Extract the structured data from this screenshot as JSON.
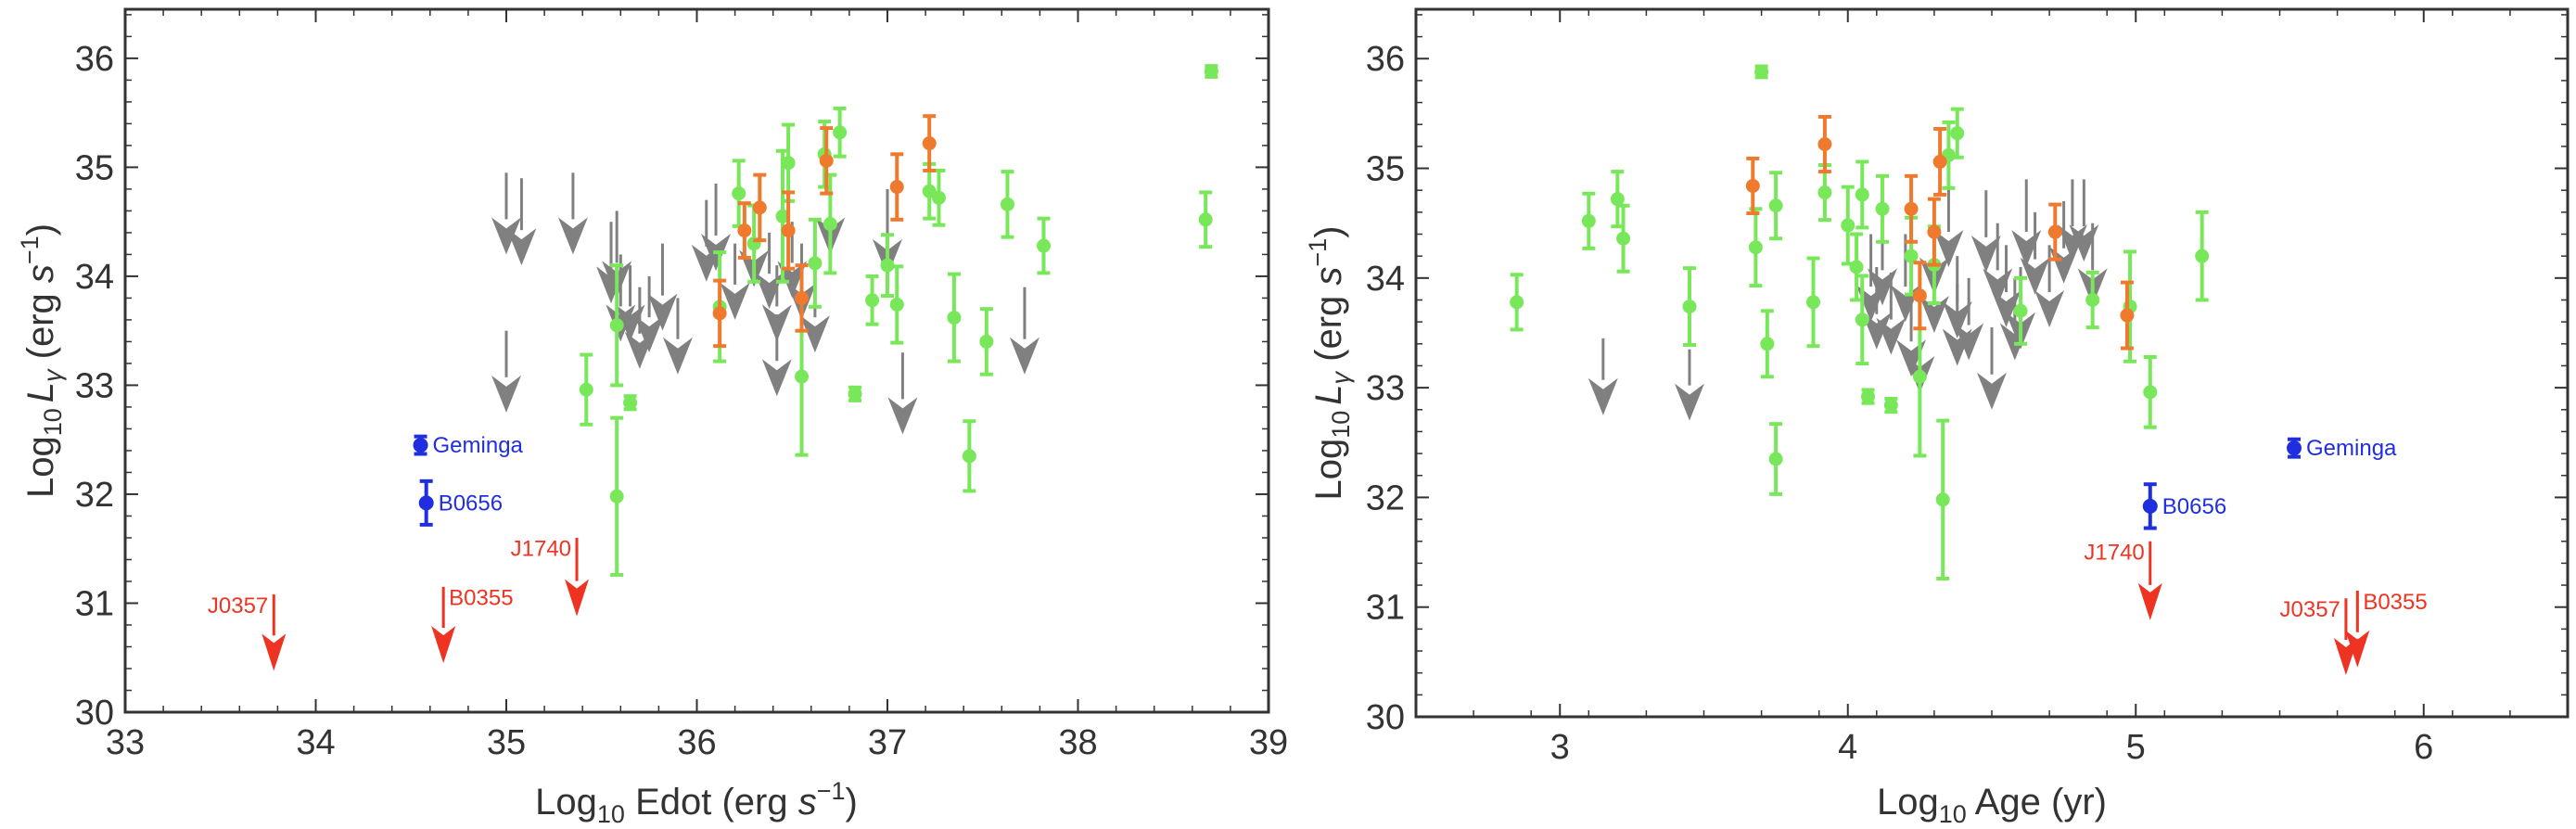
{
  "colors": {
    "green": "#78e85a",
    "orange": "#ef7a2e",
    "gray": "#808080",
    "blue": "#1f2fe0",
    "red": "#ee3322",
    "frame": "#333333"
  },
  "chart_data": [
    {
      "type": "scatter",
      "title": "",
      "xlabel": {
        "pre": "Log",
        "sub": "10",
        "post": " Edot (erg ",
        "italic": "s",
        "sup": "−1",
        "close": ")"
      },
      "ylabel": {
        "pre": "Log",
        "sub": "10",
        "italic": "L",
        "isub": "γ",
        "mid": " (erg ",
        "italic2": "s",
        "sup": "−1",
        "close": ")"
      },
      "xlim": [
        33,
        39
      ],
      "ylim": [
        30,
        36.45
      ],
      "xticks": [
        "33",
        "34",
        "35",
        "36",
        "37",
        "38",
        "39"
      ],
      "yticks": [
        "30",
        "31",
        "32",
        "33",
        "34",
        "35",
        "36"
      ],
      "green": [
        [
          35.42,
          32.96,
          0.32
        ],
        [
          35.58,
          33.55,
          0.55
        ],
        [
          35.58,
          31.98,
          0.72
        ],
        [
          35.65,
          32.84,
          0.06
        ],
        [
          36.12,
          33.72,
          0.5
        ],
        [
          36.22,
          34.76,
          0.3
        ],
        [
          36.3,
          34.3,
          0.35
        ],
        [
          36.45,
          34.55,
          0.6
        ],
        [
          36.48,
          35.04,
          0.35
        ],
        [
          36.55,
          33.08,
          0.72
        ],
        [
          36.62,
          34.12,
          0.4
        ],
        [
          36.67,
          35.12,
          0.3
        ],
        [
          36.7,
          34.48,
          0.45
        ],
        [
          36.75,
          35.32,
          0.22
        ],
        [
          36.83,
          32.92,
          0.06
        ],
        [
          36.92,
          33.78,
          0.22
        ],
        [
          37.0,
          34.1,
          0.28
        ],
        [
          37.05,
          33.74,
          0.35
        ],
        [
          37.22,
          34.78,
          0.25
        ],
        [
          37.27,
          34.72,
          0.25
        ],
        [
          37.35,
          33.62,
          0.4
        ],
        [
          37.43,
          32.35,
          0.32
        ],
        [
          37.52,
          33.4,
          0.3
        ],
        [
          37.63,
          34.66,
          0.3
        ],
        [
          37.82,
          34.28,
          0.25
        ],
        [
          38.67,
          34.52,
          0.25
        ],
        [
          38.7,
          35.88,
          0.05
        ]
      ],
      "orange": [
        [
          36.12,
          33.66,
          0.3
        ],
        [
          36.25,
          34.42,
          0.25
        ],
        [
          36.33,
          34.63,
          0.3
        ],
        [
          36.48,
          34.42,
          0.35
        ],
        [
          36.55,
          33.8,
          0.3
        ],
        [
          36.68,
          35.06,
          0.3
        ],
        [
          37.05,
          34.82,
          0.3
        ],
        [
          37.22,
          35.22,
          0.25
        ]
      ],
      "gray": [
        [
          35.0,
          34.95,
          34.2
        ],
        [
          35.08,
          34.9,
          34.1
        ],
        [
          35.35,
          34.95,
          34.2
        ],
        [
          35.55,
          34.5,
          33.75
        ],
        [
          35.58,
          34.6,
          33.8
        ],
        [
          35.6,
          34.2,
          33.4
        ],
        [
          35.65,
          34.1,
          33.4
        ],
        [
          35.7,
          33.9,
          33.15
        ],
        [
          35.75,
          34.0,
          33.3
        ],
        [
          35.82,
          34.3,
          33.5
        ],
        [
          35.9,
          33.8,
          33.1
        ],
        [
          36.05,
          34.7,
          33.95
        ],
        [
          36.1,
          34.85,
          34.05
        ],
        [
          36.2,
          34.3,
          33.6
        ],
        [
          36.3,
          34.6,
          33.9
        ],
        [
          36.38,
          34.4,
          33.7
        ],
        [
          36.42,
          34.1,
          33.4
        ],
        [
          36.5,
          34.5,
          33.8
        ],
        [
          36.55,
          34.3,
          33.6
        ],
        [
          36.62,
          34.1,
          33.3
        ],
        [
          36.7,
          34.9,
          34.2
        ],
        [
          37.0,
          34.8,
          34.0
        ],
        [
          35.0,
          33.5,
          32.75
        ],
        [
          36.42,
          33.65,
          32.9
        ],
        [
          37.08,
          33.3,
          32.55
        ],
        [
          37.72,
          33.9,
          33.1
        ]
      ],
      "blue": [
        {
          "label": "Geminga",
          "x": 34.55,
          "y": 32.45,
          "err": 0.08
        },
        {
          "label": "B0656",
          "x": 34.58,
          "y": 31.92,
          "err": 0.2
        }
      ],
      "red": [
        {
          "label": "J0357",
          "x": 33.78,
          "ytop": 31.08,
          "ybot": 30.38,
          "side": "left",
          "ly": 30.98
        },
        {
          "label": "B0355",
          "x": 34.67,
          "ytop": 31.15,
          "ybot": 30.45,
          "side": "right",
          "ly": 31.05
        },
        {
          "label": "J1740",
          "x": 35.37,
          "ytop": 31.6,
          "ybot": 30.88,
          "side": "left",
          "ly": 31.5
        }
      ]
    },
    {
      "type": "scatter",
      "title": "",
      "xlabel": {
        "pre": "Log",
        "sub": "10",
        "post": " Age (yr)"
      },
      "ylabel": {
        "pre": "Log",
        "sub": "10",
        "italic": "L",
        "isub": "γ",
        "mid": " (erg ",
        "italic2": "s",
        "sup": "−1",
        "close": ")"
      },
      "xlim": [
        2.5,
        6.5
      ],
      "ylim": [
        30,
        36.45
      ],
      "xticks": [
        "3",
        "4",
        "5",
        "6"
      ],
      "yticks": [
        "30",
        "31",
        "32",
        "33",
        "34",
        "35",
        "36"
      ],
      "green": [
        [
          2.85,
          33.78,
          0.25
        ],
        [
          3.1,
          34.52,
          0.25
        ],
        [
          3.2,
          34.72,
          0.25
        ],
        [
          3.22,
          34.36,
          0.3
        ],
        [
          3.45,
          33.74,
          0.35
        ],
        [
          3.68,
          34.28,
          0.35
        ],
        [
          3.7,
          35.88,
          0.05
        ],
        [
          3.72,
          33.4,
          0.3
        ],
        [
          3.75,
          34.66,
          0.3
        ],
        [
          3.75,
          32.35,
          0.32
        ],
        [
          3.88,
          33.78,
          0.4
        ],
        [
          3.92,
          34.78,
          0.25
        ],
        [
          4.0,
          34.48,
          0.35
        ],
        [
          4.03,
          34.1,
          0.3
        ],
        [
          4.05,
          33.62,
          0.4
        ],
        [
          4.05,
          34.76,
          0.3
        ],
        [
          4.07,
          32.92,
          0.06
        ],
        [
          4.12,
          34.63,
          0.3
        ],
        [
          4.15,
          32.84,
          0.06
        ],
        [
          4.22,
          34.2,
          0.35
        ],
        [
          4.25,
          33.1,
          0.72
        ],
        [
          4.3,
          34.12,
          0.35
        ],
        [
          4.33,
          31.98,
          0.72
        ],
        [
          4.35,
          35.12,
          0.3
        ],
        [
          4.38,
          35.32,
          0.22
        ],
        [
          4.6,
          33.7,
          0.3
        ],
        [
          4.85,
          33.8,
          0.25
        ],
        [
          4.98,
          33.74,
          0.5
        ],
        [
          5.05,
          32.96,
          0.32
        ],
        [
          5.23,
          34.2,
          0.4
        ]
      ],
      "orange": [
        [
          3.67,
          34.84,
          0.25
        ],
        [
          3.92,
          35.22,
          0.25
        ],
        [
          4.22,
          34.63,
          0.3
        ],
        [
          4.25,
          33.84,
          0.3
        ],
        [
          4.3,
          34.42,
          0.3
        ],
        [
          4.32,
          35.06,
          0.3
        ],
        [
          4.72,
          34.42,
          0.25
        ],
        [
          4.97,
          33.66,
          0.3
        ]
      ],
      "gray": [
        [
          3.15,
          33.45,
          32.75
        ],
        [
          3.45,
          33.35,
          32.7
        ],
        [
          4.08,
          34.4,
          33.6
        ],
        [
          4.1,
          34.1,
          33.35
        ],
        [
          4.12,
          34.5,
          33.75
        ],
        [
          4.15,
          34.05,
          33.3
        ],
        [
          4.2,
          34.4,
          33.6
        ],
        [
          4.22,
          33.85,
          33.1
        ],
        [
          4.25,
          33.7,
          32.95
        ],
        [
          4.3,
          34.6,
          33.85
        ],
        [
          4.35,
          34.9,
          34.1
        ],
        [
          4.38,
          34.2,
          33.45
        ],
        [
          4.42,
          34.0,
          33.25
        ],
        [
          4.48,
          34.8,
          34.05
        ],
        [
          4.52,
          34.5,
          33.75
        ],
        [
          4.55,
          34.3,
          33.55
        ],
        [
          4.58,
          34.0,
          33.25
        ],
        [
          4.62,
          34.9,
          34.1
        ],
        [
          4.65,
          34.6,
          33.85
        ],
        [
          4.7,
          34.3,
          33.55
        ],
        [
          4.75,
          34.7,
          33.95
        ],
        [
          4.78,
          34.9,
          34.15
        ],
        [
          4.82,
          34.9,
          34.15
        ],
        [
          4.85,
          34.5,
          33.75
        ],
        [
          4.5,
          33.55,
          32.8
        ],
        [
          4.6,
          34.1,
          33.35
        ],
        [
          4.38,
          33.95,
          33.2
        ],
        [
          4.3,
          34.2,
          33.5
        ]
      ],
      "blue": [
        {
          "label": "Geminga",
          "x": 5.55,
          "y": 32.45,
          "err": 0.08
        },
        {
          "label": "B0656",
          "x": 5.05,
          "y": 31.92,
          "err": 0.2
        }
      ],
      "red": [
        {
          "label": "J1740",
          "x": 5.05,
          "ytop": 31.6,
          "ybot": 30.88,
          "side": "left",
          "ly": 31.5
        },
        {
          "label": "J0357",
          "x": 5.73,
          "ytop": 31.08,
          "ybot": 30.38,
          "side": "left",
          "ly": 30.98
        },
        {
          "label": "B0355",
          "x": 5.77,
          "ytop": 31.15,
          "ybot": 30.45,
          "side": "right",
          "ly": 31.05
        }
      ]
    }
  ]
}
